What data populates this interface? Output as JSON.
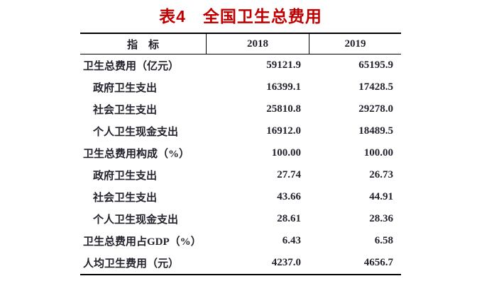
{
  "title": {
    "text": "表4　全国卫生总费用",
    "color": "#c00000"
  },
  "table": {
    "border_color": "#000000",
    "header": {
      "indicator": "指　标",
      "col2018": "2018",
      "col2019": "2019"
    },
    "rows": [
      {
        "label": "卫生总费用（亿元）",
        "v2018": "59121.9",
        "v2019": "65195.9",
        "indent": 0
      },
      {
        "label": "政府卫生支出",
        "v2018": "16399.1",
        "v2019": "17428.5",
        "indent": 1
      },
      {
        "label": "社会卫生支出",
        "v2018": "25810.8",
        "v2019": "29278.0",
        "indent": 1
      },
      {
        "label": "个人卫生现金支出",
        "v2018": "16912.0",
        "v2019": "18489.5",
        "indent": 1
      },
      {
        "label": "卫生总费用构成（%）",
        "v2018": "100.00",
        "v2019": "100.00",
        "indent": 0
      },
      {
        "label": "政府卫生支出",
        "v2018": "27.74",
        "v2019": "26.73",
        "indent": 1
      },
      {
        "label": "社会卫生支出",
        "v2018": "43.66",
        "v2019": "44.91",
        "indent": 1
      },
      {
        "label": "个人卫生现金支出",
        "v2018": "28.61",
        "v2019": "28.36",
        "indent": 1
      },
      {
        "label": "卫生总费用占GDP（%）",
        "v2018": "6.43",
        "v2019": "6.58",
        "indent": 0
      },
      {
        "label": "人均卫生费用（元）",
        "v2018": "4237.0",
        "v2019": "4656.7",
        "indent": 0
      }
    ]
  }
}
